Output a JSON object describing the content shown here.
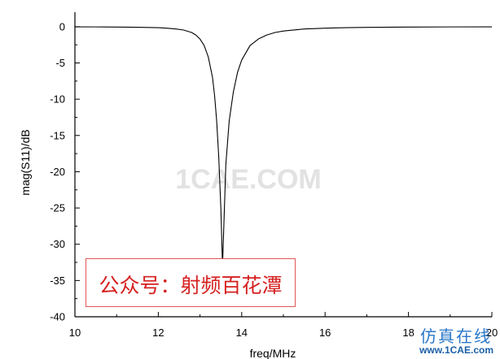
{
  "chart_data": {
    "type": "line",
    "xlabel": "freq/MHz",
    "ylabel": "mag(S11)/dB",
    "xlim": [
      10,
      20
    ],
    "ylim": [
      -40,
      2
    ],
    "x_ticks": [
      "10",
      "12",
      "14",
      "16",
      "18",
      "20"
    ],
    "y_ticks": [
      "0",
      "-5",
      "-10",
      "-15",
      "-20",
      "-25",
      "-30",
      "-35",
      "-40"
    ],
    "grid": false,
    "legend": "none",
    "series": [
      {
        "color": "#000000",
        "points": [
          [
            10.0,
            -0.02
          ],
          [
            10.5,
            -0.03
          ],
          [
            11.0,
            -0.05
          ],
          [
            11.5,
            -0.08
          ],
          [
            12.0,
            -0.14
          ],
          [
            12.2,
            -0.2
          ],
          [
            12.4,
            -0.3
          ],
          [
            12.6,
            -0.45
          ],
          [
            12.8,
            -0.8
          ],
          [
            12.9,
            -1.15
          ],
          [
            13.0,
            -1.7
          ],
          [
            13.1,
            -2.6
          ],
          [
            13.2,
            -4.2
          ],
          [
            13.3,
            -7.0
          ],
          [
            13.35,
            -9.5
          ],
          [
            13.4,
            -13.0
          ],
          [
            13.45,
            -18.0
          ],
          [
            13.5,
            -25.0
          ],
          [
            13.54,
            -33.0
          ],
          [
            13.58,
            -26.0
          ],
          [
            13.62,
            -19.0
          ],
          [
            13.7,
            -13.0
          ],
          [
            13.8,
            -9.0
          ],
          [
            13.9,
            -6.3
          ],
          [
            14.0,
            -4.6
          ],
          [
            14.2,
            -2.6
          ],
          [
            14.4,
            -1.7
          ],
          [
            14.6,
            -1.15
          ],
          [
            14.8,
            -0.8
          ],
          [
            15.0,
            -0.6
          ],
          [
            15.5,
            -0.32
          ],
          [
            16.0,
            -0.2
          ],
          [
            16.5,
            -0.13
          ],
          [
            17.0,
            -0.09
          ],
          [
            18.0,
            -0.05
          ],
          [
            19.0,
            -0.03
          ],
          [
            20.0,
            -0.02
          ]
        ]
      }
    ],
    "annotations": [
      "公众号：射频百花潭",
      "1CAE.COM",
      "仿真在线",
      "www.1CAE.com"
    ]
  },
  "colors": {
    "line": "#000000",
    "annotation_border": "#e05555",
    "annotation_text": "#d62020",
    "watermark": "#e2e2e2",
    "logo_blue": "#2a77c9"
  }
}
